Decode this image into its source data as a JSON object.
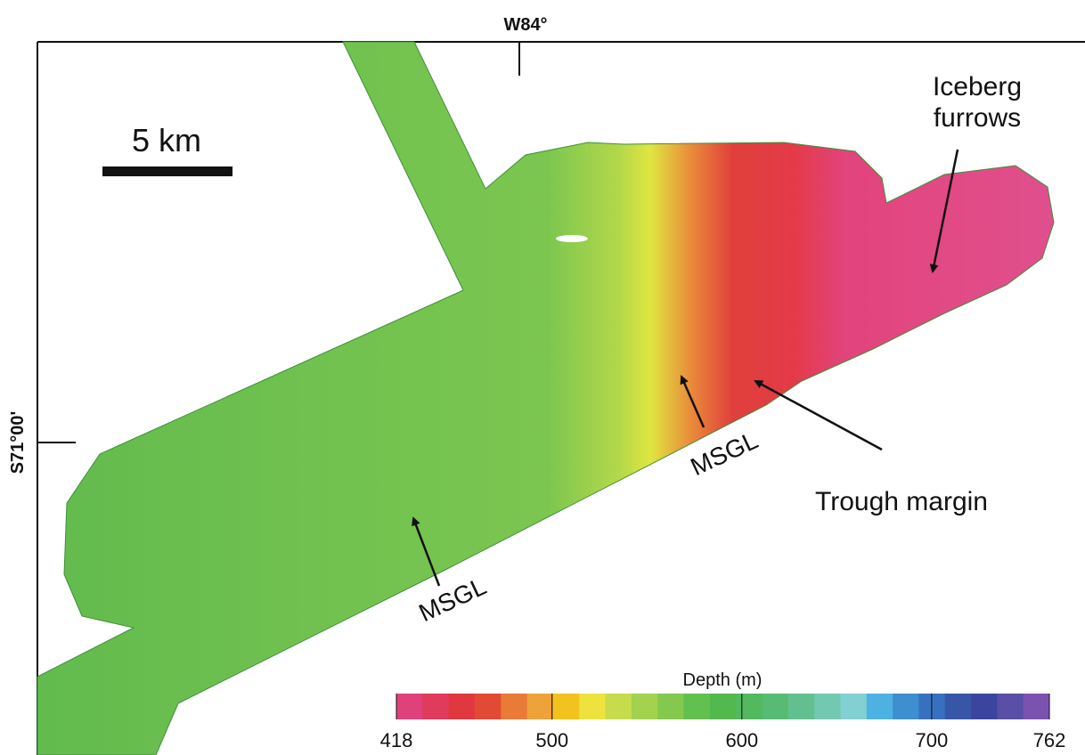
{
  "longitude_label": "W84°",
  "latitude_label": "S71°00'",
  "scale_bar": {
    "label": "5 km"
  },
  "annotations": {
    "iceberg_furrows": [
      "Iceberg",
      "furrows"
    ],
    "msgl_west": "MSGL",
    "msgl_east": "MSGL",
    "trough_margin": "Trough margin"
  },
  "colorbar": {
    "title": "Depth (m)",
    "range": [
      418,
      762
    ],
    "ticks": [
      418,
      500,
      600,
      700,
      762
    ],
    "colors": [
      "#e0417a",
      "#e03a5c",
      "#e0383e",
      "#e24a36",
      "#e97a38",
      "#eea23a",
      "#f2c31f",
      "#eee23c",
      "#c6dc4c",
      "#a2d24e",
      "#82c94e",
      "#62c04e",
      "#52b94e",
      "#52b95e",
      "#58bb74",
      "#62c090",
      "#72c8b0",
      "#82d0d2",
      "#4db2e2",
      "#3e8fd0",
      "#3770bf",
      "#3856a8",
      "#3b45a0",
      "#5a4fa6",
      "#7c52b0"
    ]
  }
}
